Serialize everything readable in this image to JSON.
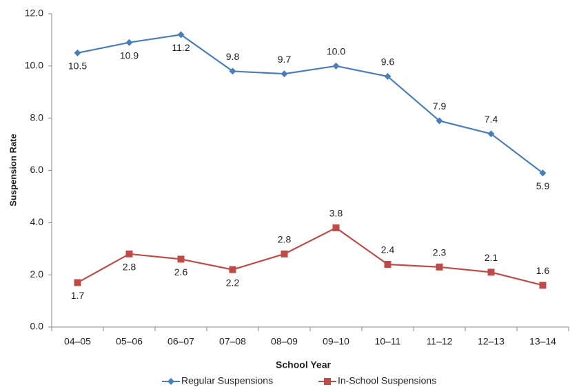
{
  "chart_data": {
    "type": "line",
    "x_label": "School Year",
    "y_label": "Suspension Rate",
    "categories": [
      "04–05",
      "05–06",
      "06–07",
      "07–08",
      "08–09",
      "09–10",
      "10–11",
      "11–12",
      "12–13",
      "13–14"
    ],
    "series": [
      {
        "name": "Regular Suspensions",
        "color": "#4a7ebb",
        "marker": "diamond",
        "values": [
          10.5,
          10.9,
          11.2,
          9.8,
          9.7,
          10.0,
          9.6,
          7.9,
          7.4,
          5.9
        ],
        "value_labels": [
          "10.5",
          "10.9",
          "11.2",
          "9.8",
          "9.7",
          "10.0",
          "9.6",
          "7.9",
          "7.4",
          "5.9"
        ]
      },
      {
        "name": "In-School Suspensions",
        "color": "#be4b48",
        "marker": "square",
        "values": [
          1.7,
          2.8,
          2.6,
          2.2,
          2.8,
          3.8,
          2.4,
          2.3,
          2.1,
          1.6
        ]
      }
    ],
    "ylim": [
      0,
      12
    ],
    "yticks": [
      {
        "value": 0,
        "label": "0.0"
      },
      {
        "value": 2,
        "label": "2.0"
      },
      {
        "value": 4,
        "label": "4.0"
      },
      {
        "value": 6,
        "label": "6.0"
      },
      {
        "value": 8,
        "label": "8.0"
      },
      {
        "value": 10,
        "label": "10.0"
      },
      {
        "value": 12,
        "label": "12.0"
      }
    ],
    "grid": false,
    "legend": "bottom"
  }
}
